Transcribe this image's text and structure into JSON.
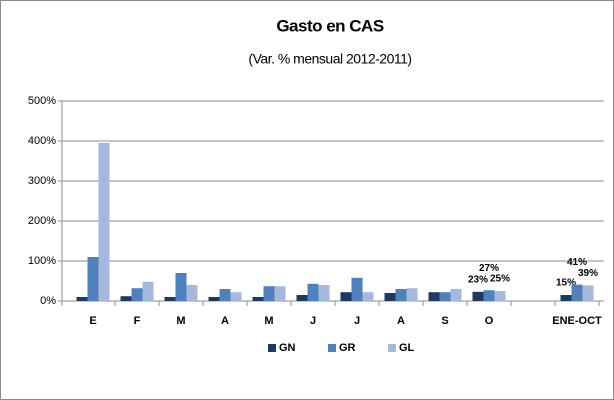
{
  "chart_data": {
    "type": "bar",
    "title": "Gasto en CAS",
    "subtitle": "(Var. % mensual 2012-2011)",
    "categories": [
      "E",
      "F",
      "M",
      "A",
      "M",
      "J",
      "J",
      "A",
      "S",
      "O",
      null,
      "ENE-OCT"
    ],
    "series": [
      {
        "name": "GN",
        "color": "#1f3864",
        "values": [
          10,
          12,
          10,
          10,
          10,
          15,
          22,
          20,
          22,
          23,
          null,
          15
        ],
        "value_labels": [
          null,
          null,
          null,
          null,
          null,
          null,
          null,
          null,
          null,
          "23%",
          null,
          "15%"
        ]
      },
      {
        "name": "GR",
        "color": "#4f81bd",
        "values": [
          110,
          32,
          70,
          30,
          37,
          43,
          58,
          30,
          22,
          27,
          null,
          41
        ],
        "value_labels": [
          null,
          null,
          null,
          null,
          null,
          null,
          null,
          null,
          null,
          "27%",
          null,
          "41%"
        ]
      },
      {
        "name": "GL",
        "color": "#a6b9dc",
        "values": [
          395,
          48,
          40,
          22,
          37,
          40,
          22,
          32,
          30,
          25,
          null,
          39
        ],
        "value_labels": [
          null,
          null,
          null,
          null,
          null,
          null,
          null,
          null,
          null,
          "25%",
          null,
          "39%"
        ]
      }
    ],
    "ylim": [
      0,
      500
    ],
    "yticks": [
      {
        "value": 0,
        "label": "0%"
      },
      {
        "value": 100,
        "label": "100%"
      },
      {
        "value": 200,
        "label": "200%"
      },
      {
        "value": 300,
        "label": "300%"
      },
      {
        "value": 400,
        "label": "400%"
      },
      {
        "value": 500,
        "label": "500%"
      }
    ],
    "grid": true,
    "legend": "bottom"
  }
}
